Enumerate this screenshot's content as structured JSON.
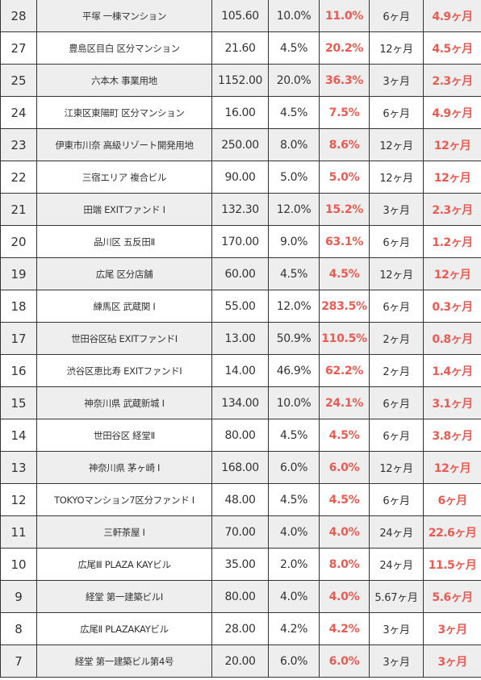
{
  "colors": {
    "accent_red": "#ee5a52",
    "row_shade": "#eeeeee",
    "border": "#333333"
  },
  "rows": [
    {
      "no": "28",
      "name": "平塚 一棟マンション",
      "amount": "105.60",
      "rate": "10.0%",
      "yield": "11.0%",
      "term": "6ヶ月",
      "result": "4.9ヶ月"
    },
    {
      "no": "27",
      "name": "豊島区目白 区分マンション",
      "amount": "21.60",
      "rate": "4.5%",
      "yield": "20.2%",
      "term": "12ヶ月",
      "result": "4.5ヶ月"
    },
    {
      "no": "25",
      "name": "六本木 事業用地",
      "amount": "1152.00",
      "rate": "20.0%",
      "yield": "36.3%",
      "term": "3ヶ月",
      "result": "2.3ヶ月"
    },
    {
      "no": "24",
      "name": "江東区東陽町 区分マンション",
      "amount": "16.00",
      "rate": "4.5%",
      "yield": "7.5%",
      "term": "6ヶ月",
      "result": "4.9ヶ月"
    },
    {
      "no": "23",
      "name": "伊東市川奈 高級リゾート開発用地",
      "amount": "250.00",
      "rate": "8.0%",
      "yield": "8.6%",
      "term": "12ヶ月",
      "result": "12ヶ月"
    },
    {
      "no": "22",
      "name": "三宿エリア 複合ビル",
      "amount": "90.00",
      "rate": "5.0%",
      "yield": "5.0%",
      "term": "12ヶ月",
      "result": "12ヶ月"
    },
    {
      "no": "21",
      "name": "田端 EXITファンド Ⅰ",
      "amount": "132.30",
      "rate": "12.0%",
      "yield": "15.2%",
      "term": "3ヶ月",
      "result": "2.3ヶ月"
    },
    {
      "no": "20",
      "name": "品川区 五反田Ⅱ",
      "amount": "170.00",
      "rate": "9.0%",
      "yield": "63.1%",
      "term": "6ヶ月",
      "result": "1.2ヶ月"
    },
    {
      "no": "19",
      "name": "広尾 区分店舗",
      "amount": "60.00",
      "rate": "4.5%",
      "yield": "4.5%",
      "term": "12ヶ月",
      "result": "12ヶ月"
    },
    {
      "no": "18",
      "name": "練馬区 武蔵関 Ⅰ",
      "amount": "55.00",
      "rate": "12.0%",
      "yield": "283.5%",
      "term": "6ヶ月",
      "result": "0.3ヶ月"
    },
    {
      "no": "17",
      "name": "世田谷区砧 EXITファンドⅠ",
      "amount": "13.00",
      "rate": "50.9%",
      "yield": "110.5%",
      "term": "2ヶ月",
      "result": "0.8ヶ月"
    },
    {
      "no": "16",
      "name": "渋谷区恵比寿 EXITファンドⅠ",
      "amount": "14.00",
      "rate": "46.9%",
      "yield": "62.2%",
      "term": "2ヶ月",
      "result": "1.4ヶ月"
    },
    {
      "no": "15",
      "name": "神奈川県 武蔵新城 Ⅰ",
      "amount": "134.00",
      "rate": "10.0%",
      "yield": "24.1%",
      "term": "6ヶ月",
      "result": "3.1ヶ月"
    },
    {
      "no": "14",
      "name": "世田谷区 経堂Ⅱ",
      "amount": "80.00",
      "rate": "4.5%",
      "yield": "4.5%",
      "term": "6ヶ月",
      "result": "3.8ヶ月"
    },
    {
      "no": "13",
      "name": "神奈川県 茅ヶ崎 Ⅰ",
      "amount": "168.00",
      "rate": "6.0%",
      "yield": "6.0%",
      "term": "12ヶ月",
      "result": "12ヶ月"
    },
    {
      "no": "12",
      "name": "TOKYOマンション7区分ファンド Ⅰ",
      "amount": "48.00",
      "rate": "4.5%",
      "yield": "4.5%",
      "term": "6ヶ月",
      "result": "6ヶ月"
    },
    {
      "no": "11",
      "name": "三軒茶屋 Ⅰ",
      "amount": "70.00",
      "rate": "4.0%",
      "yield": "4.0%",
      "term": "24ヶ月",
      "result": "22.6ヶ月"
    },
    {
      "no": "10",
      "name": "広尾Ⅲ PLAZA KAYビル",
      "amount": "35.00",
      "rate": "2.0%",
      "yield": "8.0%",
      "term": "24ヶ月",
      "result": "11.5ヶ月"
    },
    {
      "no": "9",
      "name": "経堂 第一建築ビルⅠ",
      "amount": "80.00",
      "rate": "4.0%",
      "yield": "4.0%",
      "term": "5.67ヶ月",
      "result": "5.6ヶ月"
    },
    {
      "no": "8",
      "name": "広尾Ⅱ PLAZAKAYビル",
      "amount": "28.00",
      "rate": "4.2%",
      "yield": "4.2%",
      "term": "3ヶ月",
      "result": "3ヶ月"
    },
    {
      "no": "7",
      "name": "経堂 第一建築ビル第4号",
      "amount": "20.00",
      "rate": "6.0%",
      "yield": "6.0%",
      "term": "3ヶ月",
      "result": "3ヶ月"
    }
  ]
}
